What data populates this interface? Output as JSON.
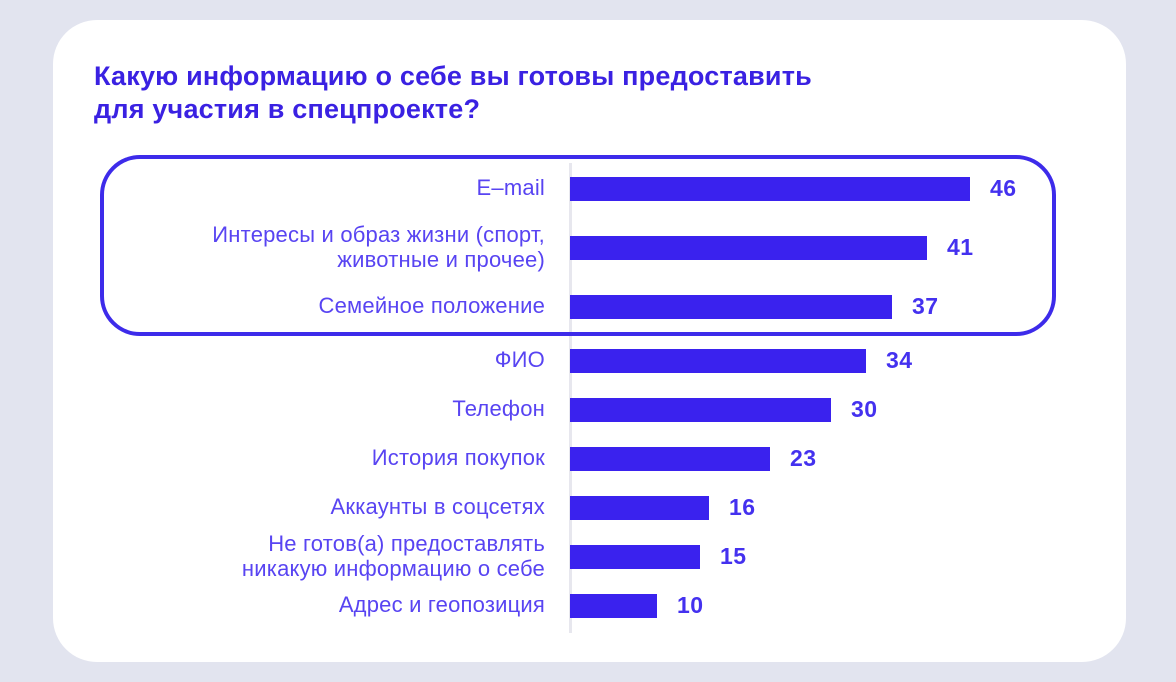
{
  "page": {
    "background_color": "#e2e4ef",
    "card_color": "#ffffff"
  },
  "title": {
    "full_text": "Какую информацию о себе вы готовы предоставить для участия в спецпроекте?",
    "lines": [
      "Какую информацию о себе вы готовы предоставить",
      "для участия в спецпроекте?"
    ],
    "color": "#3a21e2"
  },
  "chart_data": {
    "type": "bar",
    "orientation": "horizontal",
    "title": "Какую информацию о себе вы готовы предоставить для участия в спецпроекте?",
    "categories": [
      "E–mail",
      "Интересы и образ жизни (спорт,\nживотные и прочее)",
      "Семейное положение",
      "ФИО",
      "Телефон",
      "История покупок",
      "Аккаунты в соцсетях",
      "Не готов(а) предоставлять\nникакую информацию о себе",
      "Адрес и геопозиция"
    ],
    "values": [
      46,
      41,
      37,
      34,
      30,
      23,
      16,
      15,
      10
    ],
    "value_axis_max": 46,
    "highlighted_categories_indices": [
      0,
      1,
      2
    ],
    "grid": false,
    "legend": false,
    "value_labels_shown": true,
    "bar_color": "#3a22ee",
    "label_color": "#5844f2",
    "value_color": "#4431ef",
    "highlight_border_color": "#3d2bea",
    "axis_line_color": "#e7e7ee"
  }
}
